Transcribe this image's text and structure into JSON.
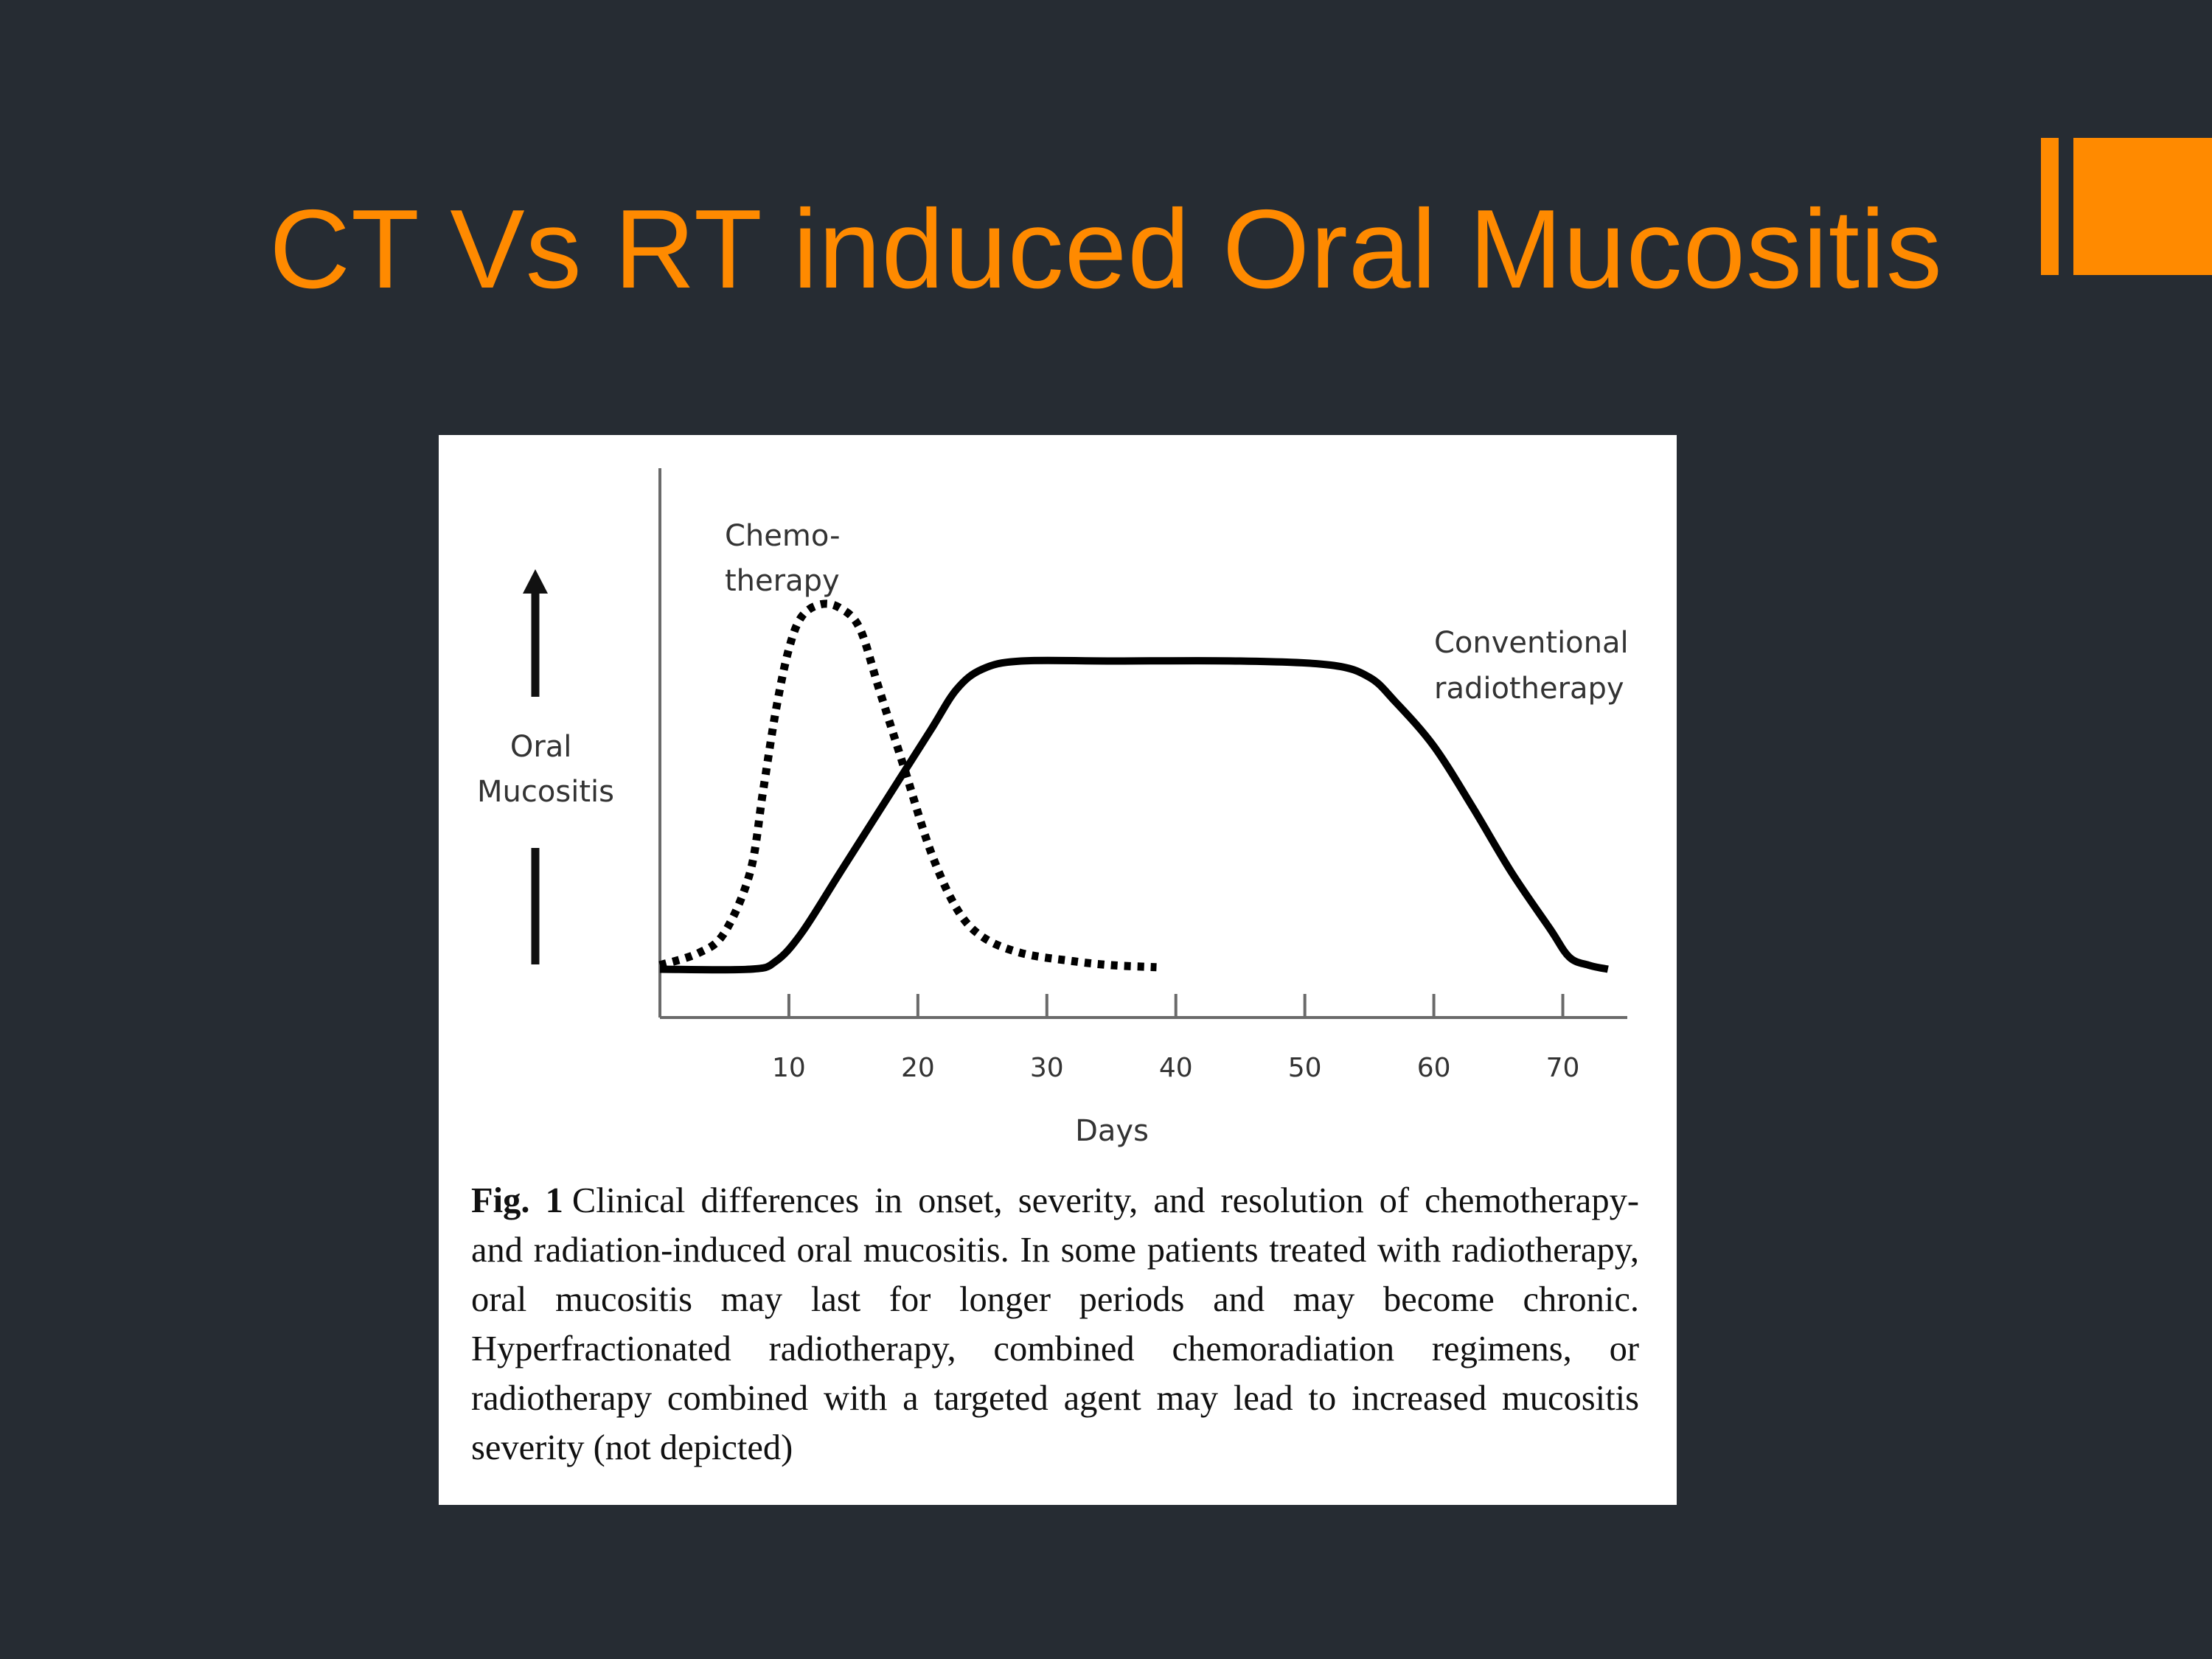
{
  "slide": {
    "title": "CT Vs RT induced Oral Mucositis",
    "accent_color": "#ff8a00",
    "background_color": "#262c33"
  },
  "figure": {
    "caption_label": "Fig. 1",
    "caption_text": "Clinical differences in onset, severity, and resolution of chemotherapy- and radiation-induced oral mucositis. In some patients treated with radiotherapy, oral mucositis may last for longer periods and may become chronic. Hyperfractionated radiotherapy, combined chemoradiation regimens, or radiotherapy combined with a targeted agent may lead to increased mucositis severity (not depicted)"
  },
  "chart_data": {
    "type": "line",
    "title": "",
    "xlabel": "Days",
    "ylabel_lines": [
      "Oral",
      "Mucositis"
    ],
    "xlim": [
      0,
      75
    ],
    "ylim": [
      0,
      100
    ],
    "xticks": [
      10,
      20,
      30,
      40,
      50,
      60,
      70
    ],
    "grid": false,
    "series": [
      {
        "name_lines": [
          "Chemo-",
          "therapy"
        ],
        "style": "dotted",
        "points": [
          [
            0,
            2
          ],
          [
            3,
            5
          ],
          [
            5,
            10
          ],
          [
            7,
            25
          ],
          [
            8,
            45
          ],
          [
            9,
            65
          ],
          [
            10,
            80
          ],
          [
            11,
            88
          ],
          [
            12.5,
            91
          ],
          [
            14,
            90
          ],
          [
            15.5,
            85
          ],
          [
            17,
            70
          ],
          [
            19,
            50
          ],
          [
            21,
            30
          ],
          [
            23,
            16
          ],
          [
            25,
            9
          ],
          [
            28,
            5
          ],
          [
            32,
            3
          ],
          [
            35,
            2
          ],
          [
            38.5,
            1.5
          ]
        ]
      },
      {
        "name_lines": [
          "Conventional",
          "radiotherapy"
        ],
        "style": "solid",
        "points": [
          [
            0,
            1
          ],
          [
            7,
            1
          ],
          [
            9,
            3
          ],
          [
            11,
            10
          ],
          [
            14,
            25
          ],
          [
            18,
            45
          ],
          [
            21,
            60
          ],
          [
            23,
            70
          ],
          [
            25,
            75
          ],
          [
            28,
            77
          ],
          [
            35,
            77
          ],
          [
            45,
            77
          ],
          [
            52,
            76
          ],
          [
            55,
            73
          ],
          [
            57,
            67
          ],
          [
            60,
            56
          ],
          [
            63,
            41
          ],
          [
            66,
            25
          ],
          [
            69,
            11
          ],
          [
            70.5,
            4
          ],
          [
            72,
            2
          ],
          [
            73.5,
            1
          ]
        ]
      }
    ]
  }
}
